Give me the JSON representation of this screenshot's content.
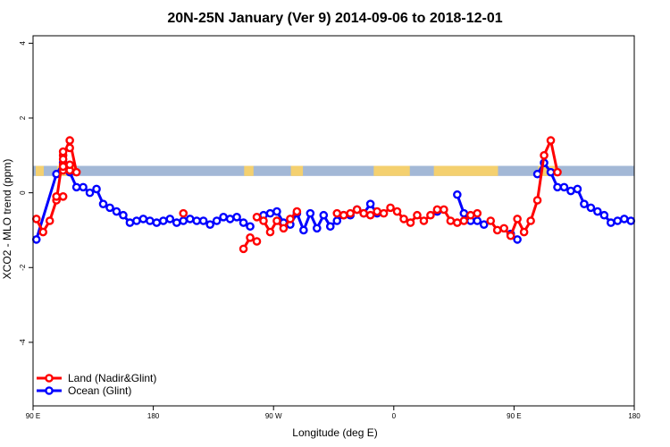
{
  "chart_data": {
    "type": "line",
    "title": "20N-25N January (Ver 9)   2014-09-06 to 2018-12-01",
    "xlabel": "Longitude (deg E)",
    "ylabel": "XCO2 - MLO trend (ppm)",
    "xlim": [
      90,
      540
    ],
    "ylim": [
      -5.7,
      4.2
    ],
    "xticks": [
      {
        "value": 90,
        "label": "90 E"
      },
      {
        "value": 180,
        "label": "180"
      },
      {
        "value": 270,
        "label": "90 W"
      },
      {
        "value": 360,
        "label": "0"
      },
      {
        "value": 450,
        "label": "90 E"
      },
      {
        "value": 540,
        "label": "180"
      }
    ],
    "yticks": [
      {
        "value": 4,
        "label": "4"
      },
      {
        "value": 2,
        "label": "2"
      },
      {
        "value": 0,
        "label": "0"
      },
      {
        "value": -2,
        "label": "-2"
      },
      {
        "value": -4,
        "label": "-4"
      }
    ],
    "grid": false,
    "legend_position": "bottom-left",
    "band": {
      "ymin": 0.45,
      "ymax": 0.72,
      "ocean_color": "#a3b8d6",
      "land_color": "#f4d06f"
    },
    "series": [
      {
        "name": "Land (Nadir&Glint)",
        "color": "#ff0000",
        "segments": [
          [
            [
              92.5,
              -0.7
            ],
            [
              97.5,
              -1.05
            ],
            [
              102.5,
              -0.75
            ],
            [
              107.5,
              -0.2
            ],
            [
              112.5,
              1.0
            ],
            [
              117.5,
              1.4
            ],
            [
              122.5,
              0.55
            ]
          ],
          [
            [
              112.5,
              0.6
            ],
            [
              117.5,
              0.6
            ]
          ],
          [
            [
              112.5,
              -0.1
            ],
            [
              107.5,
              -0.1
            ]
          ],
          [
            [
              112.5,
              0.75
            ],
            [
              112.5,
              0.9
            ]
          ],
          [
            [
              112.5,
              1.1
            ],
            [
              117.5,
              1.2
            ]
          ],
          [
            [
              112.5,
              0.7
            ],
            [
              117.5,
              0.75
            ]
          ]
        ]
      },
      {
        "name": "Land (Nadir&Glint)",
        "color": "#ff0000",
        "segments": [
          [
            [
              202.5,
              -0.55
            ]
          ],
          [
            [
              247.5,
              -1.5
            ],
            [
              252.5,
              -1.2
            ],
            [
              257.5,
              -1.3
            ]
          ],
          [
            [
              257.5,
              -0.65
            ],
            [
              262.5,
              -0.75
            ],
            [
              267.5,
              -1.05
            ],
            [
              272.5,
              -0.75
            ],
            [
              277.5,
              -0.95
            ],
            [
              282.5,
              -0.7
            ],
            [
              287.5,
              -0.5
            ]
          ],
          [
            [
              317.5,
              -0.55
            ],
            [
              322.5,
              -0.6
            ],
            [
              327.5,
              -0.55
            ],
            [
              332.5,
              -0.45
            ],
            [
              337.5,
              -0.55
            ],
            [
              342.5,
              -0.6
            ],
            [
              347.5,
              -0.5
            ],
            [
              352.5,
              -0.55
            ],
            [
              357.5,
              -0.4
            ],
            [
              362.5,
              -0.5
            ],
            [
              367.5,
              -0.7
            ],
            [
              372.5,
              -0.8
            ],
            [
              377.5,
              -0.6
            ],
            [
              382.5,
              -0.75
            ],
            [
              387.5,
              -0.6
            ],
            [
              392.5,
              -0.45
            ],
            [
              397.5,
              -0.45
            ],
            [
              402.5,
              -0.75
            ],
            [
              407.5,
              -0.8
            ],
            [
              412.5,
              -0.75
            ],
            [
              417.5,
              -0.6
            ],
            [
              422.5,
              -0.55
            ]
          ],
          [
            [
              432.5,
              -0.75
            ],
            [
              437.5,
              -1.0
            ],
            [
              442.5,
              -0.95
            ],
            [
              447.5,
              -1.15
            ],
            [
              452.5,
              -0.7
            ],
            [
              457.5,
              -1.05
            ],
            [
              462.5,
              -0.75
            ],
            [
              467.5,
              -0.2
            ],
            [
              472.5,
              1.0
            ],
            [
              477.5,
              1.4
            ],
            [
              482.5,
              0.55
            ]
          ]
        ]
      },
      {
        "name": "Ocean (Glint)",
        "color": "#0000ff",
        "segments": [
          [
            [
              92.5,
              -1.25
            ],
            [
              107.5,
              0.5
            ],
            [
              112.5,
              0.8
            ],
            [
              117.5,
              0.55
            ],
            [
              122.5,
              0.15
            ],
            [
              127.5,
              0.15
            ],
            [
              132.5,
              0.0
            ],
            [
              137.5,
              0.1
            ],
            [
              142.5,
              -0.3
            ],
            [
              147.5,
              -0.4
            ],
            [
              152.5,
              -0.5
            ],
            [
              157.5,
              -0.6
            ],
            [
              162.5,
              -0.8
            ],
            [
              167.5,
              -0.75
            ],
            [
              172.5,
              -0.7
            ],
            [
              177.5,
              -0.75
            ],
            [
              182.5,
              -0.8
            ],
            [
              187.5,
              -0.75
            ],
            [
              192.5,
              -0.7
            ],
            [
              197.5,
              -0.8
            ],
            [
              202.5,
              -0.75
            ],
            [
              207.5,
              -0.7
            ],
            [
              212.5,
              -0.75
            ],
            [
              217.5,
              -0.75
            ],
            [
              222.5,
              -0.85
            ],
            [
              227.5,
              -0.75
            ],
            [
              232.5,
              -0.65
            ],
            [
              237.5,
              -0.7
            ],
            [
              242.5,
              -0.65
            ],
            [
              247.5,
              -0.8
            ],
            [
              252.5,
              -0.9
            ]
          ],
          [
            [
              262.5,
              -0.6
            ],
            [
              267.5,
              -0.55
            ],
            [
              272.5,
              -0.5
            ],
            [
              277.5,
              -0.8
            ],
            [
              282.5,
              -0.85
            ],
            [
              287.5,
              -0.55
            ],
            [
              292.5,
              -1.0
            ],
            [
              297.5,
              -0.55
            ],
            [
              302.5,
              -0.95
            ],
            [
              307.5,
              -0.6
            ],
            [
              312.5,
              -0.9
            ],
            [
              317.5,
              -0.75
            ],
            [
              322.5,
              -0.6
            ],
            [
              327.5,
              -0.6
            ],
            [
              332.5,
              -0.45
            ],
            [
              337.5,
              -0.55
            ],
            [
              342.5,
              -0.3
            ],
            [
              347.5,
              -0.55
            ]
          ],
          [
            [
              392.5,
              -0.5
            ]
          ],
          [
            [
              407.5,
              -0.05
            ],
            [
              412.5,
              -0.55
            ],
            [
              417.5,
              -0.75
            ],
            [
              422.5,
              -0.75
            ],
            [
              427.5,
              -0.85
            ]
          ],
          [
            [
              447.5,
              -1.1
            ],
            [
              452.5,
              -1.25
            ]
          ],
          [
            [
              467.5,
              0.5
            ],
            [
              472.5,
              0.8
            ],
            [
              477.5,
              0.55
            ],
            [
              482.5,
              0.15
            ],
            [
              487.5,
              0.15
            ],
            [
              492.5,
              0.05
            ],
            [
              497.5,
              0.1
            ],
            [
              502.5,
              -0.3
            ],
            [
              507.5,
              -0.4
            ],
            [
              512.5,
              -0.5
            ],
            [
              517.5,
              -0.6
            ],
            [
              522.5,
              -0.8
            ],
            [
              527.5,
              -0.75
            ],
            [
              532.5,
              -0.7
            ],
            [
              537.5,
              -0.75
            ]
          ]
        ]
      }
    ],
    "legend": [
      {
        "label": "Land (Nadir&Glint)",
        "color": "#ff0000"
      },
      {
        "label": "Ocean (Glint)",
        "color": "#0000ff"
      }
    ]
  }
}
